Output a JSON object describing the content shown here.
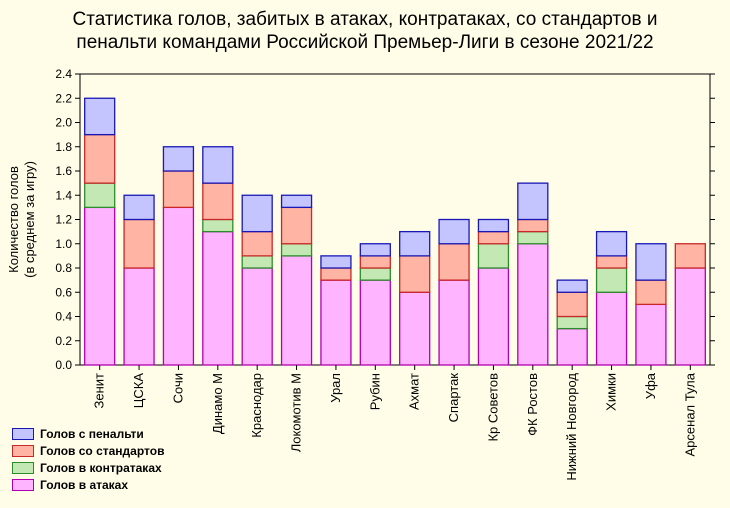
{
  "chart_data": {
    "type": "bar",
    "stacked": true,
    "title_line1": "Статистика голов, забитых в атаках, контратаках, со стандартов и",
    "title_line2": "пенальти командами Российской Премьер-Лиги в сезоне 2021/22",
    "ylabel_line1": "Количество голов",
    "ylabel_line2": "(в среднем за игру)",
    "xlabel": "",
    "ylim": [
      0,
      2.4
    ],
    "yticks": [
      "0.0",
      "0.2",
      "0.4",
      "0.6",
      "0.8",
      "1.0",
      "1.2",
      "1.4",
      "1.6",
      "1.8",
      "2.0",
      "2.2",
      "2.4"
    ],
    "categories": [
      "Зенит",
      "ЦСКА",
      "Сочи",
      "Динамо М",
      "Краснодар",
      "Локомотив М",
      "Урал",
      "Рубин",
      "Ахмат",
      "Спартак",
      "Кр Советов",
      "ФК Ростов",
      "Нижний Новгород",
      "Химки",
      "Уфа",
      "Арсенал Тула"
    ],
    "series": [
      {
        "name": "Голов в атаках",
        "color": "#ffb4ff",
        "stroke": "#b000b0",
        "values": [
          1.3,
          0.8,
          1.3,
          1.1,
          0.8,
          0.9,
          0.7,
          0.7,
          0.6,
          0.7,
          0.8,
          1.0,
          0.3,
          0.6,
          0.5,
          0.8
        ]
      },
      {
        "name": "Голов в контратаках",
        "color": "#c4e8b4",
        "stroke": "#2c8c2c",
        "values": [
          0.2,
          0.0,
          0.0,
          0.1,
          0.1,
          0.1,
          0.0,
          0.1,
          0.0,
          0.0,
          0.2,
          0.1,
          0.1,
          0.2,
          0.0,
          0.0
        ]
      },
      {
        "name": "Голов со стандартов",
        "color": "#ffb4a4",
        "stroke": "#c82828",
        "values": [
          0.4,
          0.4,
          0.3,
          0.3,
          0.2,
          0.3,
          0.1,
          0.1,
          0.3,
          0.3,
          0.1,
          0.1,
          0.2,
          0.1,
          0.2,
          0.2
        ]
      },
      {
        "name": "Голов с пенальти",
        "color": "#c4c4ff",
        "stroke": "#1818b4",
        "values": [
          0.3,
          0.2,
          0.2,
          0.3,
          0.3,
          0.1,
          0.1,
          0.1,
          0.2,
          0.2,
          0.1,
          0.3,
          0.1,
          0.2,
          0.3,
          0.0
        ]
      }
    ],
    "legend_position": "bottom-left",
    "legend_order": [
      3,
      2,
      1,
      0
    ]
  }
}
